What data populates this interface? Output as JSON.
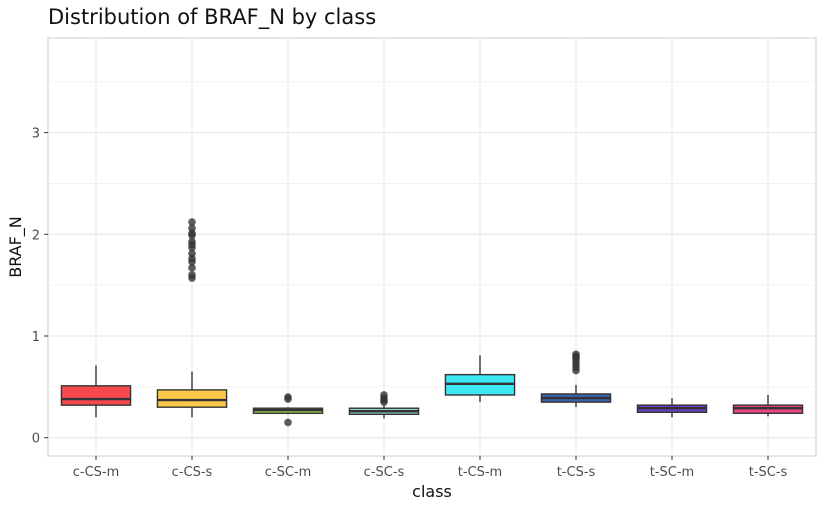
{
  "chart_data": {
    "type": "boxplot",
    "title": "Distribution of BRAF_N by class",
    "xlabel": "class",
    "ylabel": "BRAF_N",
    "categories": [
      "c-CS-m",
      "c-CS-s",
      "c-SC-m",
      "c-SC-s",
      "t-CS-m",
      "t-CS-s",
      "t-SC-m",
      "t-SC-s"
    ],
    "yticks": [
      "0",
      "1",
      "2",
      "3"
    ],
    "ylim": [
      -0.18,
      3.93
    ],
    "grid": true,
    "boxes": [
      {
        "category": "c-CS-m",
        "color": "#f8484e",
        "whisker_low": 0.2,
        "q1": 0.32,
        "median": 0.38,
        "q3": 0.51,
        "whisker_high": 0.71,
        "outliers": []
      },
      {
        "category": "c-CS-s",
        "color": "#fdc84a",
        "whisker_low": 0.2,
        "q1": 0.3,
        "median": 0.37,
        "q3": 0.47,
        "whisker_high": 0.65,
        "outliers": [
          1.57,
          1.6,
          1.67,
          1.73,
          1.76,
          1.81,
          1.87,
          1.9,
          1.93,
          1.99,
          2.01,
          2.06,
          2.12
        ]
      },
      {
        "category": "c-SC-m",
        "color": "#a6d854",
        "whisker_low": 0.23,
        "q1": 0.24,
        "median": 0.27,
        "q3": 0.29,
        "whisker_high": 0.3,
        "outliers": [
          0.15,
          0.38,
          0.4
        ]
      },
      {
        "category": "c-SC-s",
        "color": "#8dd3c7",
        "whisker_low": 0.19,
        "q1": 0.23,
        "median": 0.26,
        "q3": 0.29,
        "whisker_high": 0.32,
        "outliers": [
          0.35,
          0.37,
          0.39,
          0.42
        ]
      },
      {
        "category": "t-CS-m",
        "color": "#3ce8f3",
        "whisker_low": 0.35,
        "q1": 0.42,
        "median": 0.53,
        "q3": 0.62,
        "whisker_high": 0.81,
        "outliers": []
      },
      {
        "category": "t-CS-s",
        "color": "#3a63b0",
        "whisker_low": 0.3,
        "q1": 0.35,
        "median": 0.39,
        "q3": 0.43,
        "whisker_high": 0.52,
        "outliers": [
          0.66,
          0.69,
          0.72,
          0.75,
          0.78,
          0.8,
          0.82
        ]
      },
      {
        "category": "t-SC-m",
        "color": "#6d3ec9",
        "whisker_low": 0.2,
        "q1": 0.25,
        "median": 0.29,
        "q3": 0.32,
        "whisker_high": 0.39,
        "outliers": []
      },
      {
        "category": "t-SC-s",
        "color": "#e84383",
        "whisker_low": 0.21,
        "q1": 0.24,
        "median": 0.29,
        "q3": 0.32,
        "whisker_high": 0.42,
        "outliers": []
      }
    ]
  }
}
